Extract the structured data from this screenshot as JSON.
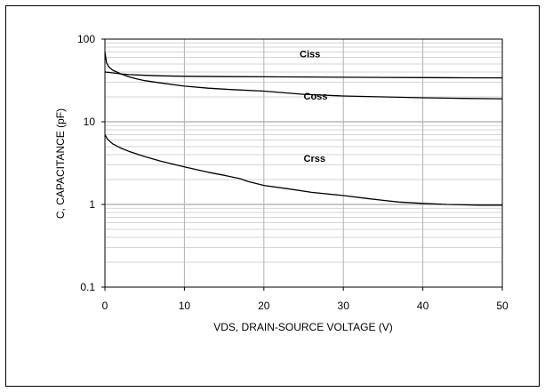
{
  "chart_data": {
    "type": "line",
    "title": "",
    "xlabel": "VDS, DRAIN-SOURCE VOLTAGE (V)",
    "ylabel": "C, CAPACITANCE (pF)",
    "xlim": [
      0,
      50
    ],
    "ylim": [
      0.1,
      100
    ],
    "yscale": "log",
    "grid": true,
    "x_ticks": [
      "0",
      "10",
      "20",
      "30",
      "40",
      "50"
    ],
    "y_ticks": [
      "0.1",
      "1",
      "10",
      "100"
    ],
    "series": [
      {
        "name": "Ciss",
        "x": [
          0,
          0.5,
          1,
          2,
          3,
          5,
          7,
          10,
          15,
          20,
          25,
          30,
          35,
          40,
          45,
          50
        ],
        "y": [
          40,
          39.5,
          39,
          38,
          37.2,
          36.5,
          36,
          35.5,
          35.2,
          35,
          34.8,
          34.6,
          34.4,
          34.2,
          34.1,
          34
        ]
      },
      {
        "name": "Coss",
        "x": [
          0,
          0.2,
          0.5,
          1,
          1.5,
          2,
          3,
          4,
          5,
          7,
          10,
          13,
          16,
          20,
          25,
          30,
          35,
          40,
          45,
          50
        ],
        "y": [
          70,
          52,
          46,
          42,
          40,
          38,
          35,
          33,
          31.5,
          29.5,
          27,
          25.5,
          24.5,
          23.5,
          21.5,
          20.5,
          20,
          19.5,
          19.2,
          19
        ]
      },
      {
        "name": "Crss",
        "x": [
          0,
          0.3,
          0.7,
          1,
          2,
          3,
          5,
          7,
          10,
          13,
          15,
          17,
          18,
          20,
          23,
          26,
          30,
          33,
          35,
          37,
          40,
          43,
          45,
          47,
          50
        ],
        "y": [
          7,
          6.2,
          5.7,
          5.4,
          4.8,
          4.4,
          3.8,
          3.35,
          2.85,
          2.45,
          2.25,
          2.05,
          1.9,
          1.7,
          1.55,
          1.4,
          1.28,
          1.18,
          1.12,
          1.07,
          1.03,
          1.0,
          0.99,
          0.98,
          0.98
        ]
      }
    ]
  }
}
